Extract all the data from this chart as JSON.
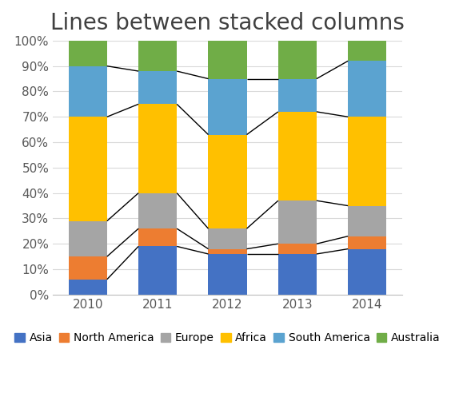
{
  "title": "Lines between stacked columns",
  "years": [
    "2010",
    "2011",
    "2012",
    "2013",
    "2014"
  ],
  "series": {
    "Asia": [
      6,
      19,
      16,
      16,
      18
    ],
    "North America": [
      9,
      7,
      2,
      4,
      5
    ],
    "Europe": [
      14,
      14,
      8,
      17,
      12
    ],
    "Africa": [
      41,
      35,
      37,
      35,
      35
    ],
    "South America": [
      20,
      13,
      22,
      13,
      22
    ],
    "Australia": [
      10,
      12,
      15,
      15,
      8
    ]
  },
  "colors": {
    "Asia": "#4472C4",
    "North America": "#ED7D31",
    "Europe": "#A5A5A5",
    "Africa": "#FFC000",
    "South America": "#5BA3D0",
    "Australia": "#70AD47"
  },
  "series_order": [
    "Asia",
    "North America",
    "Europe",
    "Africa",
    "South America",
    "Australia"
  ],
  "line_series": [
    "Asia",
    "North America",
    "Europe",
    "Africa",
    "South America"
  ],
  "background_color": "#FFFFFF",
  "plot_bg_color": "#FFFFFF",
  "title_fontsize": 20,
  "tick_fontsize": 11,
  "legend_fontsize": 10,
  "ylim": [
    0,
    100
  ],
  "bar_width": 0.55,
  "grid_color": "#D9D9D9"
}
